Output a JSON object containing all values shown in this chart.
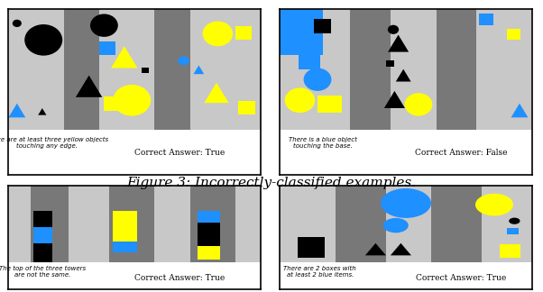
{
  "figure_caption": "Figure 3: Incorrectly-classified examples.",
  "caption_fontsize": 11,
  "bg_color": "#ffffff",
  "panel_bg": "#c8c8c8",
  "gray_tower": "#787878",
  "gray_tower2": "#888888",
  "border_color": "#000000",
  "yellow": "#ffff00",
  "blue": "#1e90ff",
  "black": "#000000",
  "panels": [
    {
      "label": "There are at least three yellow objects\ntouching any edge.",
      "answer": "Correct Answer: True"
    },
    {
      "label": "There is a blue object\ntouching the base.",
      "answer": "Correct Answer: False"
    },
    {
      "label": "The top of the three towers\nare not the same.",
      "answer": "Correct Answer: True"
    },
    {
      "label": "There are 2 boxes with\nat least 2 blue items.",
      "answer": "Correct Answer: True"
    }
  ]
}
